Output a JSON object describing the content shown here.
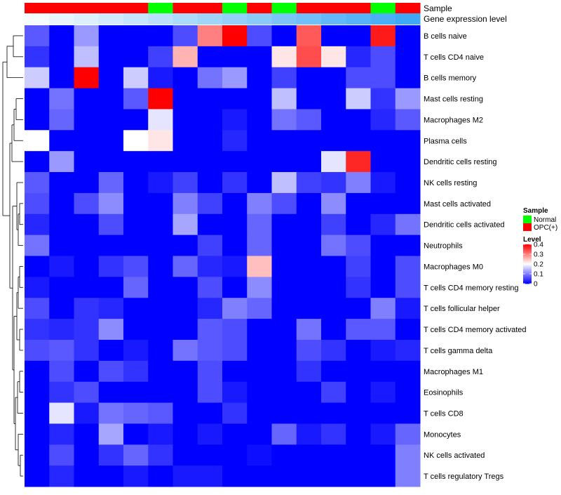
{
  "chart_data": {
    "type": "heatmap",
    "title": "",
    "annotation_tracks": {
      "sample_label": "Sample",
      "gene_label": "Gene expression level"
    },
    "columns": 16,
    "sample_annotation": [
      "OPC(+)",
      "OPC(+)",
      "OPC(+)",
      "OPC(+)",
      "OPC(+)",
      "Normal",
      "OPC(+)",
      "OPC(+)",
      "Normal",
      "OPC(+)",
      "Normal",
      "OPC(+)",
      "OPC(+)",
      "OPC(+)",
      "Normal",
      "OPC(+)"
    ],
    "gene_expression_annotation": [
      0.02,
      0.04,
      0.06,
      0.08,
      0.1,
      0.12,
      0.14,
      0.16,
      0.18,
      0.2,
      0.22,
      0.24,
      0.26,
      0.28,
      0.3,
      0.32
    ],
    "rows": [
      "B cells naive",
      "T cells CD4 naive",
      "B cells memory",
      "Mast cells resting",
      "Macrophages M2",
      "Plasma cells",
      "Dendritic cells resting",
      "NK cells resting",
      "Mast cells activated",
      "Dendritic cells activated",
      "Neutrophils",
      "Macrophages M0",
      "T cells CD4 memory resting",
      "T cells follicular helper",
      "T cells CD4 memory activated",
      "T cells gamma delta",
      "Macrophages M1",
      "Eosinophils",
      "T cells CD8",
      "Monocytes",
      "NK cells activated",
      "T cells regulatory  Tregs"
    ],
    "values": [
      [
        0.07,
        0.0,
        0.12,
        0.0,
        0.0,
        0.0,
        0.06,
        0.3,
        0.4,
        0.06,
        0.0,
        0.33,
        0.0,
        0.0,
        0.38,
        0.0
      ],
      [
        0.04,
        0.0,
        0.15,
        0.0,
        0.0,
        0.05,
        0.26,
        0.0,
        0.0,
        0.0,
        0.22,
        0.34,
        0.22,
        0.03,
        0.06,
        0.0
      ],
      [
        0.16,
        0.0,
        0.4,
        0.0,
        0.16,
        0.02,
        0.0,
        0.09,
        0.12,
        0.0,
        0.05,
        0.0,
        0.0,
        0.06,
        0.06,
        0.0
      ],
      [
        0.0,
        0.09,
        0.0,
        0.0,
        0.07,
        0.4,
        0.0,
        0.0,
        0.0,
        0.0,
        0.15,
        0.0,
        0.0,
        0.16,
        0.04,
        0.12
      ],
      [
        0.0,
        0.08,
        0.0,
        0.0,
        0.0,
        0.18,
        0.0,
        0.0,
        0.02,
        0.0,
        0.09,
        0.07,
        0.0,
        0.0,
        0.03,
        0.07
      ],
      [
        0.2,
        0.0,
        0.0,
        0.0,
        0.2,
        0.22,
        0.0,
        0.0,
        0.03,
        0.0,
        0.0,
        0.0,
        0.0,
        0.0,
        0.0,
        0.0
      ],
      [
        0.0,
        0.12,
        0.0,
        0.0,
        0.0,
        0.0,
        0.0,
        0.0,
        0.0,
        0.0,
        0.0,
        0.0,
        0.18,
        0.37,
        0.0,
        0.0
      ],
      [
        0.07,
        0.0,
        0.0,
        0.08,
        0.0,
        0.02,
        0.05,
        0.0,
        0.04,
        0.0,
        0.15,
        0.05,
        0.04,
        0.1,
        0.02,
        0.0
      ],
      [
        0.06,
        0.0,
        0.06,
        0.11,
        0.0,
        0.0,
        0.1,
        0.05,
        0.0,
        0.1,
        0.06,
        0.0,
        0.11,
        0.0,
        0.0,
        0.0
      ],
      [
        0.03,
        0.0,
        0.0,
        0.06,
        0.0,
        0.0,
        0.13,
        0.0,
        0.0,
        0.08,
        0.0,
        0.0,
        0.05,
        0.0,
        0.03,
        0.09
      ],
      [
        0.09,
        0.0,
        0.0,
        0.0,
        0.0,
        0.0,
        0.0,
        0.05,
        0.0,
        0.08,
        0.0,
        0.0,
        0.09,
        0.06,
        0.0,
        0.0
      ],
      [
        0.0,
        0.02,
        0.0,
        0.04,
        0.06,
        0.0,
        0.08,
        0.03,
        0.02,
        0.25,
        0.0,
        0.0,
        0.0,
        0.05,
        0.0,
        0.06
      ],
      [
        0.02,
        0.0,
        0.0,
        0.0,
        0.08,
        0.0,
        0.0,
        0.06,
        0.0,
        0.11,
        0.0,
        0.0,
        0.0,
        0.04,
        0.0,
        0.06
      ],
      [
        0.06,
        0.0,
        0.04,
        0.03,
        0.0,
        0.0,
        0.0,
        0.03,
        0.1,
        0.08,
        0.0,
        0.0,
        0.0,
        0.0,
        0.1,
        0.02
      ],
      [
        0.04,
        0.03,
        0.04,
        0.11,
        0.0,
        0.0,
        0.0,
        0.07,
        0.06,
        0.0,
        0.0,
        0.09,
        0.0,
        0.07,
        0.07,
        0.0
      ],
      [
        0.06,
        0.07,
        0.04,
        0.0,
        0.02,
        0.0,
        0.09,
        0.07,
        0.06,
        0.0,
        0.0,
        0.06,
        0.04,
        0.0,
        0.02,
        0.03
      ],
      [
        0.0,
        0.06,
        0.0,
        0.06,
        0.04,
        0.0,
        0.0,
        0.06,
        0.0,
        0.0,
        0.0,
        0.04,
        0.0,
        0.0,
        0.0,
        0.0
      ],
      [
        0.0,
        0.04,
        0.06,
        0.0,
        0.0,
        0.0,
        0.0,
        0.06,
        0.02,
        0.0,
        0.0,
        0.0,
        0.05,
        0.0,
        0.02,
        0.0
      ],
      [
        0.0,
        0.18,
        0.02,
        0.09,
        0.08,
        0.07,
        0.0,
        0.0,
        0.04,
        0.0,
        0.0,
        0.0,
        0.0,
        0.0,
        0.0,
        0.0
      ],
      [
        0.0,
        0.03,
        0.0,
        0.13,
        0.0,
        0.02,
        0.0,
        0.02,
        0.0,
        0.0,
        0.08,
        0.02,
        0.04,
        0.0,
        0.02,
        0.08
      ],
      [
        0.0,
        0.06,
        0.0,
        0.04,
        0.08,
        0.04,
        0.0,
        0.0,
        0.0,
        0.01,
        0.0,
        0.0,
        0.0,
        0.0,
        0.0,
        0.1
      ],
      [
        0.0,
        0.03,
        0.0,
        0.0,
        0.02,
        0.0,
        0.02,
        0.02,
        0.0,
        0.0,
        0.0,
        0.0,
        0.0,
        0.0,
        0.0,
        0.1
      ]
    ],
    "legend": {
      "sample_title": "Sample",
      "sample_entries": [
        {
          "label": "Normal",
          "color": "#00ff00"
        },
        {
          "label": "OPC(+)",
          "color": "#ff0000"
        }
      ],
      "level_title": "Level",
      "level_ticks": [
        0.4,
        0.3,
        0.2,
        0.1,
        0
      ],
      "level_tick_labels": [
        "0.4",
        "0.3",
        "0.2",
        "0.1",
        "0"
      ],
      "level_range": [
        0,
        0.4
      ]
    },
    "colors": {
      "low": "#0000ff",
      "mid": "#ffffff",
      "high": "#ff0000",
      "normal": "#00ff00",
      "opc": "#ff0000",
      "gene_low": "#ffffff",
      "gene_high": "#3fa9f5"
    }
  }
}
